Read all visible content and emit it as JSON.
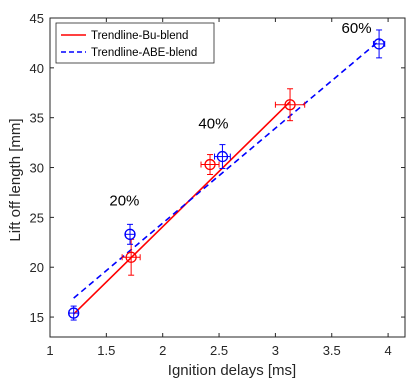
{
  "chart_data": {
    "type": "scatter",
    "xlabel": "Ignition delays [ms]",
    "ylabel": "Lift off length [mm]",
    "xlim": [
      1,
      4.15
    ],
    "ylim": [
      13,
      45
    ],
    "xticks": [
      1,
      1.5,
      2,
      2.5,
      3,
      3.5,
      4
    ],
    "xtick_labels": [
      "1",
      "1.5",
      "2",
      "2.5",
      "3",
      "3.5",
      "4"
    ],
    "yticks": [
      15,
      20,
      25,
      30,
      35,
      40,
      45
    ],
    "ytick_labels": [
      "15",
      "20",
      "25",
      "30",
      "35",
      "40",
      "45"
    ],
    "grid": false,
    "legend_position": "top-left",
    "series": [
      {
        "name": "Trendline-Bu-blend",
        "color": "#ff0000",
        "line_style": "solid",
        "marker": "circle-plus",
        "points": [
          {
            "x": 1.72,
            "y": 21.0,
            "xerr": 0.08,
            "yerr": 1.8
          },
          {
            "x": 2.42,
            "y": 30.3,
            "xerr": 0.08,
            "yerr": 1.0
          },
          {
            "x": 3.13,
            "y": 36.3,
            "xerr": 0.13,
            "yerr": 1.6
          }
        ],
        "trendline": {
          "x": [
            1.21,
            3.13
          ],
          "y": [
            15.3,
            36.6
          ]
        }
      },
      {
        "name": "Trendline-ABE-blend",
        "color": "#0000ff",
        "line_style": "dashed",
        "marker": "circle-plus",
        "points": [
          {
            "x": 1.21,
            "y": 15.4,
            "xerr": 0.04,
            "yerr": 0.7
          },
          {
            "x": 1.71,
            "y": 23.3,
            "xerr": 0.04,
            "yerr": 1.0
          },
          {
            "x": 2.53,
            "y": 31.1,
            "xerr": 0.07,
            "yerr": 1.2
          },
          {
            "x": 3.92,
            "y": 42.4,
            "xerr": 0.05,
            "yerr": 1.4
          }
        ],
        "trendline": {
          "x": [
            1.21,
            3.93
          ],
          "y": [
            16.9,
            42.8
          ]
        }
      }
    ],
    "annotations": [
      {
        "text": "20%",
        "x": 1.66,
        "y": 26.2
      },
      {
        "text": "40%",
        "x": 2.45,
        "y": 33.9
      },
      {
        "text": "60%",
        "x": 3.72,
        "y": 43.5
      }
    ]
  }
}
